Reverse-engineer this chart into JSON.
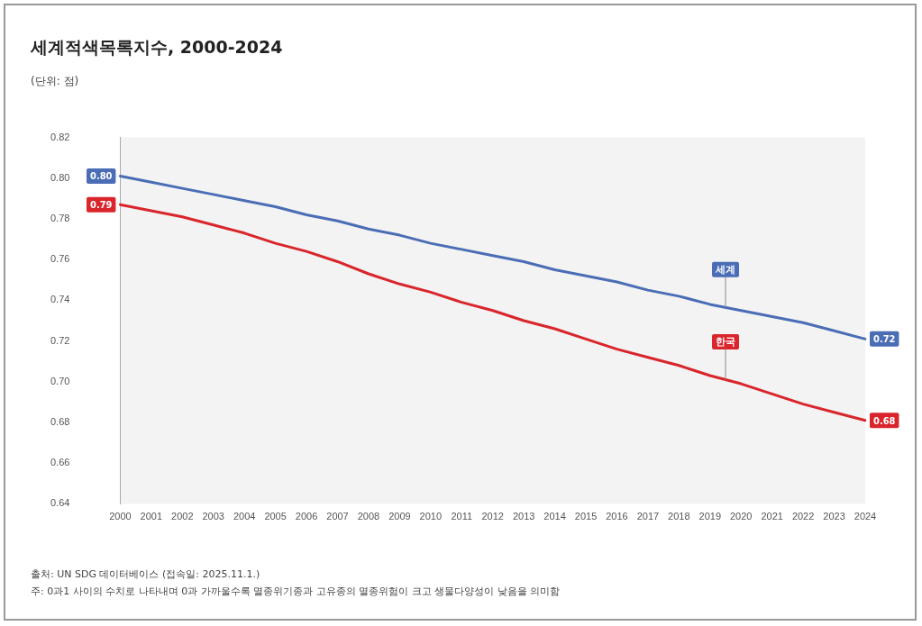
{
  "chart_data": {
    "type": "line",
    "title": "세계적색목록지수, 2000-2024",
    "ylabel": "(단위: 점)",
    "categories": [
      "2000",
      "2001",
      "2002",
      "2003",
      "2004",
      "2005",
      "2006",
      "2007",
      "2008",
      "2009",
      "2010",
      "2011",
      "2012",
      "2013",
      "2014",
      "2015",
      "2016",
      "2017",
      "2018",
      "2019",
      "2020",
      "2021",
      "2022",
      "2023",
      "2024"
    ],
    "series": [
      {
        "name": "세계",
        "color": "#4a6db5",
        "values": [
          0.801,
          0.798,
          0.795,
          0.792,
          0.789,
          0.786,
          0.782,
          0.779,
          0.775,
          0.772,
          0.768,
          0.765,
          0.762,
          0.759,
          0.755,
          0.752,
          0.749,
          0.745,
          0.742,
          0.738,
          0.735,
          0.732,
          0.729,
          0.725,
          0.721
        ],
        "value_labels": [
          "0.80",
          null,
          null,
          null,
          null,
          null,
          null,
          null,
          null,
          null,
          null,
          null,
          null,
          null,
          null,
          null,
          null,
          null,
          null,
          null,
          null,
          null,
          null,
          null,
          "0.72"
        ]
      },
      {
        "name": "한국",
        "color": "#d9252b",
        "values": [
          0.787,
          0.784,
          0.781,
          0.777,
          0.773,
          0.768,
          0.764,
          0.759,
          0.753,
          0.748,
          0.744,
          0.739,
          0.735,
          0.73,
          0.726,
          0.721,
          0.716,
          0.712,
          0.708,
          0.703,
          0.699,
          0.694,
          0.689,
          0.685,
          0.681
        ],
        "value_labels": [
          "0.79",
          null,
          null,
          null,
          null,
          null,
          null,
          null,
          null,
          null,
          null,
          null,
          null,
          null,
          null,
          null,
          null,
          null,
          null,
          null,
          null,
          null,
          null,
          null,
          "0.68"
        ]
      }
    ],
    "ylim": [
      0.64,
      0.82
    ],
    "yticks": [
      0.64,
      0.66,
      0.68,
      {
        "value": 0.7,
        "label": "0.70"
      },
      0.72,
      0.74,
      0.76,
      0.78,
      {
        "value": 0.8,
        "label": "0.80"
      },
      0.82
    ],
    "grid": false,
    "legend": false,
    "marker": "none",
    "line_style": "solid",
    "annotations": [
      "출처: UN SDG 데이터베이스 (접속일: 2025.11.1.)",
      "주: 0과1 사이의 수치로 나타내며 0과 가까울수록 멸종위기종과 고유종의 멸종위험이 크고 생물다양성이 낮음을 의미함"
    ]
  }
}
